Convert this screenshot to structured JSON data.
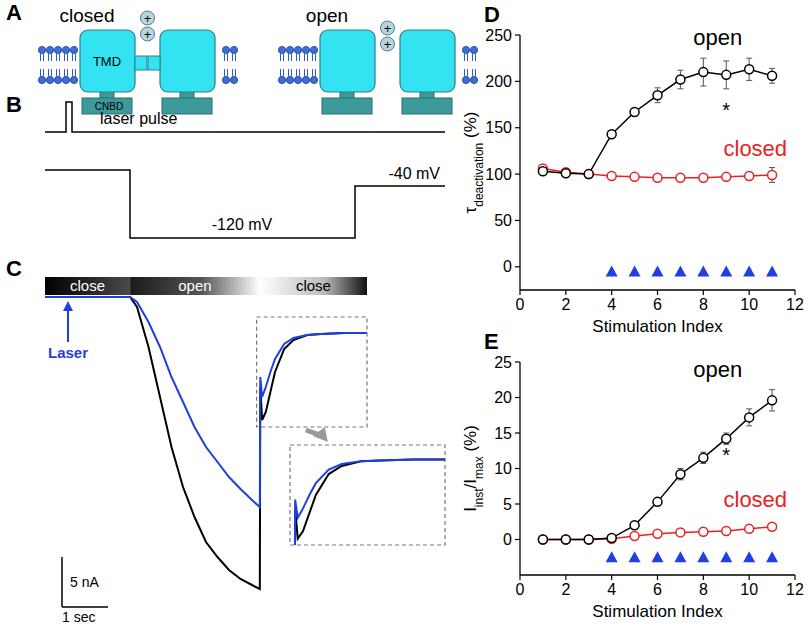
{
  "panel_labels": {
    "a": "A",
    "b": "B",
    "c": "C",
    "d": "D",
    "e": "E"
  },
  "diagram_a": {
    "states": [
      "closed",
      "open"
    ],
    "tmd_label": "TMD",
    "cnbd_label": "CNBD",
    "charge": "+"
  },
  "protocol_b": {
    "laser_label": "laser pulse",
    "step_label": "-120 mV",
    "return_label": "-40 mV"
  },
  "traces_c": {
    "phases": [
      "close",
      "open",
      "close"
    ],
    "phase_bounds": [
      0,
      1.85,
      4.67,
      7
    ],
    "laser_label": "Laser",
    "laser_time": 0.5,
    "xlim": [
      0,
      7
    ],
    "ylim": [
      -30,
      0
    ],
    "x": [
      0,
      1.0,
      1.85,
      2.0,
      2.25,
      2.5,
      2.75,
      3.0,
      3.25,
      3.5,
      3.75,
      4.0,
      4.25,
      4.5,
      4.67,
      4.68,
      4.72,
      4.8,
      4.9,
      5.0,
      5.2,
      5.4,
      5.7,
      6.0,
      6.5,
      7.0
    ],
    "series": [
      {
        "color": "#000000",
        "values": [
          0,
          0,
          0,
          -1,
          -5,
          -10,
          -15,
          -19,
          -22,
          -24.5,
          -26,
          -27.3,
          -28.2,
          -28.8,
          -29.2,
          -9,
          -12.3,
          -11.5,
          -9.5,
          -7.5,
          -5.2,
          -4.3,
          -3.8,
          -3.7,
          -3.6,
          -3.6
        ]
      },
      {
        "color": "#1f3fe0",
        "values": [
          0,
          0,
          0,
          -0.5,
          -2.5,
          -5,
          -8,
          -10.5,
          -13,
          -15,
          -16.5,
          -18,
          -19.2,
          -20.3,
          -21,
          -8,
          -10,
          -9,
          -7.5,
          -6.2,
          -4.7,
          -4.1,
          -3.8,
          -3.7,
          -3.6,
          -3.6
        ]
      }
    ],
    "inset": {
      "xlim": [
        4.6,
        7
      ],
      "ylim": [
        -13,
        -2
      ]
    },
    "scale_bar": {
      "current": 5,
      "current_label": "5 nA",
      "time": 1,
      "time_label": "1 sec"
    }
  },
  "chart_data": [
    {
      "type": "line",
      "xlabel": "Stimulation Index",
      "ylabel_parts": [
        {
          "text": "τ"
        },
        {
          "text": "deactivation",
          "sub": true
        },
        {
          "text": " (%)"
        }
      ],
      "xlim": [
        0,
        12
      ],
      "xticks": [
        0,
        2,
        4,
        6,
        8,
        10,
        12
      ],
      "ylim": [
        -25,
        250
      ],
      "yticks": [
        0,
        50,
        100,
        150,
        200,
        250
      ],
      "marker": "circle",
      "x": [
        1,
        2,
        3,
        4,
        5,
        6,
        7,
        8,
        9,
        10,
        11
      ],
      "series": [
        {
          "name": "open",
          "color": "#000000",
          "values": [
            103,
            101,
            100,
            143,
            167,
            185,
            202,
            210,
            207,
            213,
            206
          ],
          "errors": [
            3,
            2,
            1,
            3,
            3,
            8,
            10,
            15,
            15,
            12,
            8
          ]
        },
        {
          "name": "closed",
          "color": "#e8231f",
          "values": [
            106,
            102,
            100,
            98,
            97,
            96,
            96,
            96,
            97,
            98,
            99
          ],
          "errors": [
            3,
            2,
            1,
            2,
            2,
            2,
            2,
            2,
            2,
            4,
            8
          ]
        }
      ],
      "stimuli": {
        "x": [
          4,
          5,
          6,
          7,
          8,
          9,
          10,
          11
        ],
        "y": [
          -5,
          -5,
          -5,
          -5,
          -5,
          -5,
          -5,
          -5
        ],
        "color": "#1f3fe0",
        "marker": "triangle"
      },
      "annotations": [
        {
          "text": "*",
          "x": 9,
          "y": 170
        }
      ]
    },
    {
      "type": "line",
      "xlabel": "Stimulation Index",
      "ylabel_parts": [
        {
          "text": "I"
        },
        {
          "text": "inst",
          "sub": true
        },
        {
          "text": "/I"
        },
        {
          "text": "max",
          "sub": true
        },
        {
          "text": " (%)"
        }
      ],
      "xlim": [
        0,
        12
      ],
      "xticks": [
        0,
        2,
        4,
        6,
        8,
        10,
        12
      ],
      "ylim": [
        -5,
        25
      ],
      "yticks": [
        0,
        5,
        10,
        15,
        20,
        25
      ],
      "marker": "circle",
      "x": [
        1,
        2,
        3,
        4,
        5,
        6,
        7,
        8,
        9,
        10,
        11
      ],
      "series": [
        {
          "name": "open",
          "color": "#000000",
          "values": [
            0,
            0,
            0,
            0.2,
            2,
            5.3,
            9.2,
            11.5,
            14.2,
            17.2,
            19.6
          ],
          "errors": [
            0.2,
            0.2,
            0.2,
            0.3,
            0.5,
            0.5,
            0.8,
            0.8,
            0.8,
            1.2,
            1.5
          ]
        },
        {
          "name": "closed",
          "color": "#e8231f",
          "values": [
            0,
            0,
            0,
            0.1,
            0.5,
            0.8,
            1,
            1.1,
            1.2,
            1.5,
            1.8
          ],
          "errors": [
            0.2,
            0.2,
            0.2,
            0.2,
            0.3,
            0.3,
            0.3,
            0.3,
            0.3,
            0.4,
            0.4
          ]
        }
      ],
      "stimuli": {
        "x": [
          4,
          5,
          6,
          7,
          8,
          9,
          10,
          11
        ],
        "y": [
          -2.5,
          -2.5,
          -2.5,
          -2.5,
          -2.5,
          -2.5,
          -2.5,
          -2.5
        ],
        "color": "#1f3fe0",
        "marker": "triangle"
      },
      "annotations": [
        {
          "text": "*",
          "x": 9,
          "y": 12
        }
      ]
    }
  ]
}
